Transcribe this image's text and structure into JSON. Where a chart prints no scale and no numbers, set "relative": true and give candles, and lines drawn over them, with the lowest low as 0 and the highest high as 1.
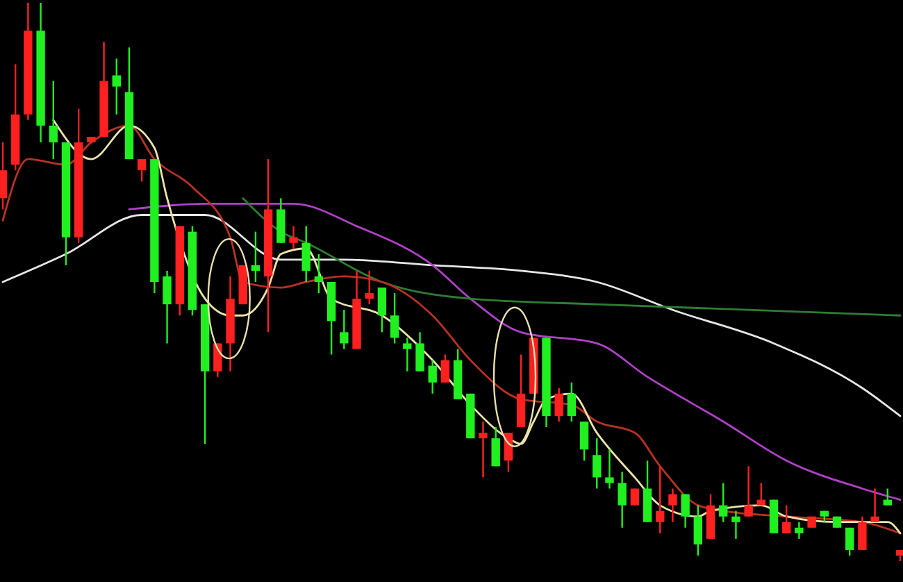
{
  "chart_data": {
    "type": "candlestick",
    "relative": true,
    "categories": [
      null,
      null,
      null,
      null,
      null,
      null,
      null,
      null,
      null,
      null,
      null,
      null,
      null,
      null,
      null,
      null,
      null,
      null,
      null,
      null,
      null,
      null,
      null,
      null,
      null,
      null,
      null,
      null,
      null,
      null,
      null,
      null,
      null,
      null,
      null,
      null,
      null,
      null,
      null,
      null,
      null,
      null,
      null,
      null,
      null,
      null,
      null,
      null,
      null,
      null,
      null,
      null,
      null,
      null,
      null,
      null,
      null,
      null,
      null,
      null,
      null,
      null,
      null,
      null,
      null,
      null,
      null,
      null,
      null,
      null,
      null,
      null
    ],
    "ohlc": [
      [
        0.65,
        0.75,
        0.63,
        0.7
      ],
      [
        0.71,
        0.89,
        0.7,
        0.8
      ],
      [
        0.8,
        1,
        0.79,
        0.95
      ],
      [
        0.95,
        1,
        0.75,
        0.78
      ],
      [
        0.78,
        0.86,
        0.72,
        0.75
      ],
      [
        0.75,
        0.75,
        0.53,
        0.58
      ],
      [
        0.58,
        0.81,
        0.57,
        0.75
      ],
      [
        0.75,
        0.76,
        0.75,
        0.76
      ],
      [
        0.76,
        0.93,
        0.76,
        0.86
      ],
      [
        0.87,
        0.9,
        0.8,
        0.85
      ],
      [
        0.84,
        0.92,
        0.72,
        0.72
      ],
      [
        0.7,
        0.72,
        0.68,
        0.72
      ],
      [
        0.72,
        0.72,
        0.48,
        0.5
      ],
      [
        0.51,
        0.52,
        0.39,
        0.46
      ],
      [
        0.46,
        0.6,
        0.44,
        0.6
      ],
      [
        0.59,
        0.6,
        0.44,
        0.45
      ],
      [
        0.46,
        0.46,
        0.21,
        0.34
      ],
      [
        0.34,
        0.39,
        0.33,
        0.39
      ],
      [
        0.39,
        0.51,
        0.34,
        0.47
      ],
      [
        0.46,
        0.53,
        0.46,
        0.53
      ],
      [
        0.53,
        0.59,
        0.5,
        0.52
      ],
      [
        0.51,
        0.72,
        0.41,
        0.63
      ],
      [
        0.63,
        0.65,
        0.57,
        0.57
      ],
      [
        0.57,
        0.6,
        0.56,
        0.58
      ],
      [
        0.57,
        0.6,
        0.5,
        0.52
      ],
      [
        0.51,
        0.55,
        0.48,
        0.5
      ],
      [
        0.5,
        0.5,
        0.37,
        0.43
      ],
      [
        0.41,
        0.45,
        0.38,
        0.39
      ],
      [
        0.38,
        0.52,
        0.38,
        0.47
      ],
      [
        0.47,
        0.52,
        0.46,
        0.48
      ],
      [
        0.49,
        0.49,
        0.41,
        0.44
      ],
      [
        0.44,
        0.48,
        0.39,
        0.4
      ],
      [
        0.39,
        0.4,
        0.34,
        0.38
      ],
      [
        0.39,
        0.41,
        0.34,
        0.34
      ],
      [
        0.35,
        0.36,
        0.3,
        0.32
      ],
      [
        0.32,
        0.37,
        0.32,
        0.36
      ],
      [
        0.36,
        0.38,
        0.29,
        0.29
      ],
      [
        0.3,
        0.3,
        0.22,
        0.22
      ],
      [
        0.22,
        0.25,
        0.15,
        0.23
      ],
      [
        0.22,
        0.24,
        0.17,
        0.17
      ],
      [
        0.18,
        0.23,
        0.16,
        0.23
      ],
      [
        0.24,
        0.37,
        0.24,
        0.3
      ],
      [
        0.3,
        0.4,
        0.3,
        0.4
      ],
      [
        0.4,
        0.4,
        0.24,
        0.26
      ],
      [
        0.26,
        0.31,
        0.25,
        0.3
      ],
      [
        0.3,
        0.32,
        0.25,
        0.26
      ],
      [
        0.25,
        0.25,
        0.18,
        0.2
      ],
      [
        0.19,
        0.22,
        0.13,
        0.15
      ],
      [
        0.15,
        0.2,
        0.13,
        0.14
      ],
      [
        0.14,
        0.16,
        0.06,
        0.1
      ],
      [
        0.1,
        0.13,
        0.1,
        0.13
      ],
      [
        0.13,
        0.18,
        0.07,
        0.07
      ],
      [
        0.07,
        0.17,
        0.05,
        0.09
      ],
      [
        0.1,
        0.13,
        0.07,
        0.12
      ],
      [
        0.12,
        0.12,
        0.06,
        0.08
      ],
      [
        0.08,
        0.1,
        0.01,
        0.03
      ],
      [
        0.04,
        0.12,
        0.04,
        0.1
      ],
      [
        0.1,
        0.14,
        0.07,
        0.08
      ],
      [
        0.08,
        0.09,
        0.04,
        0.07
      ],
      [
        0.08,
        0.17,
        0.08,
        0.1
      ],
      [
        0.1,
        0.14,
        0.1,
        0.11
      ],
      [
        0.11,
        0.11,
        0.05,
        0.05
      ],
      [
        0.05,
        0.1,
        0.05,
        0.07
      ],
      [
        0.06,
        0.07,
        0.04,
        0.05
      ],
      [
        0.06,
        0.08,
        0.06,
        0.08
      ],
      [
        0.09,
        0.09,
        0.07,
        0.08
      ],
      [
        0.08,
        0.08,
        0.06,
        0.06
      ],
      [
        0.06,
        0.06,
        0.01,
        0.02
      ],
      [
        0.02,
        0.08,
        0.02,
        0.07
      ],
      [
        0.07,
        0.13,
        0.07,
        0.08
      ],
      [
        0.11,
        0.13,
        0.1,
        0.1
      ],
      [
        0.01,
        0.02,
        0,
        0.02
      ]
    ],
    "colors": [
      "#ff2020",
      "#ff2020",
      "#ff2020",
      "#20f020",
      "#20f020",
      "#20f020",
      "#ff2020",
      "#ff2020",
      "#ff2020",
      "#20f020",
      "#20f020",
      "#ff2020",
      "#20f020",
      "#20f020",
      "#ff2020",
      "#20f020",
      "#20f020",
      "#ff2020",
      "#ff2020",
      "#ff2020",
      "#20f020",
      "#ff2020",
      "#20f020",
      "#ff2020",
      "#20f020",
      "#20f020",
      "#20f020",
      "#20f020",
      "#ff2020",
      "#ff2020",
      "#20f020",
      "#20f020",
      "#20f020",
      "#20f020",
      "#20f020",
      "#ff2020",
      "#20f020",
      "#20f020",
      "#ff2020",
      "#20f020",
      "#ff2020",
      "#ff2020",
      "#ff2020",
      "#20f020",
      "#ff2020",
      "#20f020",
      "#20f020",
      "#20f020",
      "#20f020",
      "#20f020",
      "#ff2020",
      "#20f020",
      "#ff2020",
      "#ff2020",
      "#20f020",
      "#20f020",
      "#ff2020",
      "#20f020",
      "#20f020",
      "#ff2020",
      "#ff2020",
      "#20f020",
      "#ff2020",
      "#20f020",
      "#ff2020",
      "#20f020",
      "#20f020",
      "#20f020",
      "#ff2020",
      "#ff2020",
      "#20f020",
      "#ff2020"
    ],
    "series": [
      {
        "type": "line",
        "color": "#e6e6e6",
        "values": [
          0.5,
          null,
          null,
          null,
          null,
          0.55,
          null,
          null,
          null,
          null,
          null,
          0.62,
          null,
          null,
          null,
          null,
          0.62,
          null,
          null,
          null,
          null,
          null,
          0.54,
          null,
          null,
          null,
          null,
          0.54,
          null,
          null,
          null,
          null,
          null,
          null,
          0.53,
          null,
          null,
          null,
          null,
          null,
          null,
          0.52,
          null,
          null,
          null,
          null,
          null,
          0.5,
          null,
          null,
          null,
          null,
          null,
          0.45,
          null,
          null,
          null,
          null,
          null,
          null,
          null,
          0.39,
          null,
          null,
          null,
          null,
          null,
          null,
          0.31,
          null,
          null,
          0.26
        ]
      },
      {
        "type": "line",
        "color": "#b040c8",
        "values": [
          null,
          null,
          null,
          null,
          null,
          null,
          null,
          null,
          null,
          null,
          0.63,
          null,
          null,
          null,
          null,
          null,
          0.64,
          null,
          null,
          null,
          null,
          null,
          null,
          0.64,
          null,
          null,
          null,
          null,
          0.6,
          null,
          null,
          null,
          null,
          null,
          0.53,
          null,
          null,
          0.47,
          null,
          null,
          null,
          0.41,
          null,
          null,
          null,
          null,
          null,
          0.39,
          null,
          null,
          null,
          0.33,
          null,
          null,
          null,
          null,
          null,
          0.25,
          null,
          null,
          null,
          null,
          0.18,
          null,
          null,
          null,
          null,
          null,
          0.13,
          null,
          null,
          0.11
        ]
      },
      {
        "type": "line",
        "color": "#2e7d32",
        "values": [
          null,
          null,
          null,
          null,
          null,
          null,
          null,
          null,
          null,
          null,
          null,
          null,
          null,
          null,
          null,
          null,
          null,
          null,
          null,
          0.65,
          null,
          null,
          0.59,
          null,
          0.57,
          null,
          null,
          null,
          null,
          null,
          0.5,
          null,
          null,
          null,
          null,
          null,
          null,
          0.47,
          null,
          null,
          null,
          null,
          null,
          null,
          null,
          null,
          null,
          0.46,
          null,
          null,
          null,
          null,
          null,
          null,
          null,
          null,
          null,
          null,
          null,
          null,
          null,
          null,
          null,
          null,
          null,
          null,
          null,
          null,
          null,
          null,
          null,
          0.44
        ]
      },
      {
        "type": "line",
        "color": "#b83224",
        "values": [
          0.61,
          null,
          0.72,
          null,
          null,
          0.71,
          null,
          0.75,
          null,
          null,
          0.78,
          null,
          0.72,
          null,
          null,
          0.67,
          null,
          null,
          0.58,
          0.5,
          null,
          null,
          0.49,
          null,
          0.5,
          null,
          null,
          0.51,
          null,
          null,
          0.5,
          null,
          null,
          null,
          0.44,
          null,
          null,
          0.36,
          null,
          null,
          null,
          0.29,
          null,
          null,
          null,
          0.28,
          null,
          0.25,
          null,
          null,
          0.23,
          null,
          0.17,
          null,
          null,
          0.1,
          null,
          0.09,
          null,
          null,
          null,
          null,
          0.08,
          null,
          null,
          null,
          null,
          null,
          0.07,
          null,
          null,
          0.05
        ]
      },
      {
        "type": "line",
        "color": "#ece4a8",
        "values": [
          null,
          null,
          null,
          null,
          0.79,
          null,
          null,
          0.72,
          null,
          null,
          0.78,
          null,
          0.74,
          0.65,
          null,
          null,
          0.47,
          null,
          0.44,
          0.44,
          null,
          0.49,
          0.55,
          null,
          0.56,
          null,
          0.47,
          null,
          null,
          null,
          0.44,
          null,
          null,
          null,
          0.36,
          null,
          null,
          0.28,
          null,
          null,
          0.22,
          0.21,
          0.25,
          0.29,
          null,
          0.3,
          null,
          0.23,
          null,
          null,
          0.15,
          null,
          0.1,
          null,
          null,
          0.08,
          0.09,
          null,
          null,
          null,
          0.1,
          null,
          0.08,
          null,
          null,
          null,
          0.07,
          null,
          null,
          null,
          0.07,
          0.05
        ]
      }
    ]
  }
}
